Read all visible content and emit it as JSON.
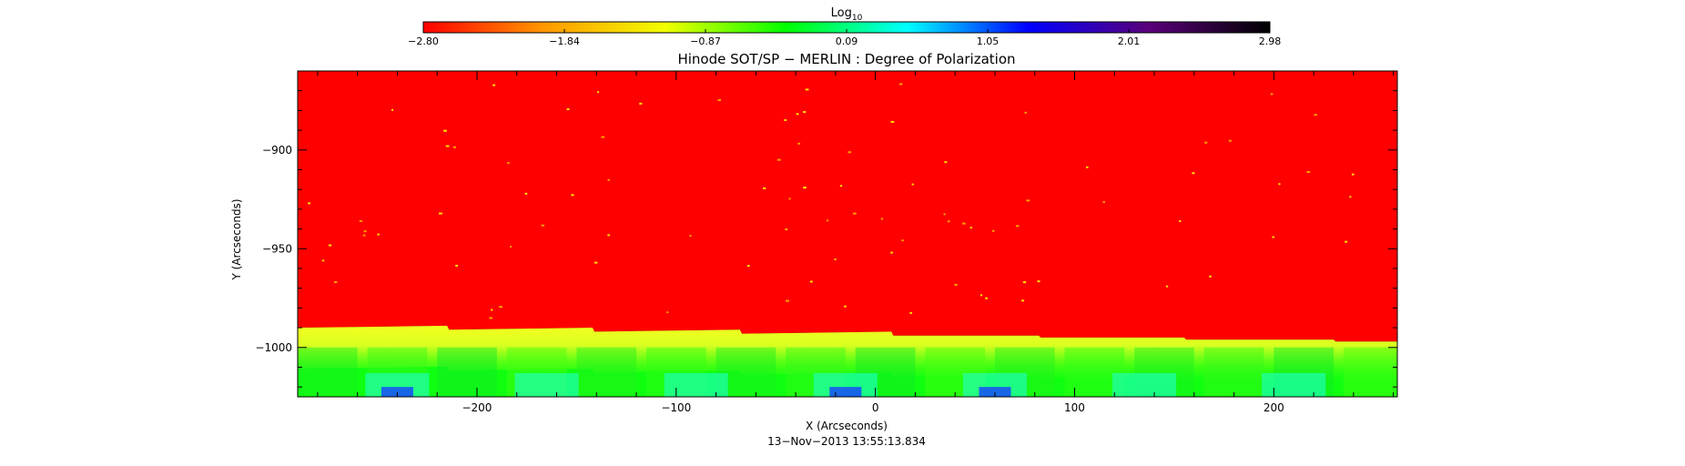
{
  "chart_data": {
    "type": "heatmap",
    "title": "Hinode SOT/SP − MERLIN : Degree of Polarization",
    "xlabel": "X (Arcseconds)",
    "ylabel": "Y (Arcseconds)",
    "xlim": [
      -290,
      262
    ],
    "ylim": [
      -1025,
      -860
    ],
    "xticks": [
      -200,
      -100,
      0,
      100,
      200
    ],
    "xtick_labels": [
      "−200",
      "−100",
      "0",
      "100",
      "200"
    ],
    "yticks": [
      -900,
      -950,
      -1000
    ],
    "ytick_labels": [
      "−900",
      "−950",
      "−1000"
    ],
    "timestamp": "13−Nov−2013 13:55:13.834",
    "colorbar": {
      "label_main": "Log",
      "label_sub": "10",
      "min": -2.8,
      "max": 2.98,
      "tick_labels": [
        "−2.80",
        "−1.84",
        "−0.87",
        "0.09",
        "1.05",
        "2.01",
        "2.98"
      ],
      "colors": [
        "#ff0000",
        "#ff9800",
        "#f2ff00",
        "#00ff00",
        "#00ffff",
        "#0000ff",
        "#5a007a",
        "#000000"
      ]
    },
    "regions": [
      {
        "name": "upper region",
        "value": -2.8,
        "color": "#ff0000"
      },
      {
        "name": "limb band",
        "value": -1.2,
        "color": "#d8ff20"
      },
      {
        "name": "lower region",
        "value": -0.3,
        "color": "#10ff10"
      },
      {
        "name": "bottom patches",
        "value": 0.9,
        "color": "#20ffe0"
      }
    ],
    "limb_boundary": [
      {
        "x": -290,
        "y": -990
      },
      {
        "x": -215,
        "y": -989
      },
      {
        "x": -214,
        "y": -991
      },
      {
        "x": -142,
        "y": -990
      },
      {
        "x": -141,
        "y": -992
      },
      {
        "x": -68,
        "y": -991
      },
      {
        "x": -67,
        "y": -993
      },
      {
        "x": 8,
        "y": -992
      },
      {
        "x": 9,
        "y": -994
      },
      {
        "x": 82,
        "y": -994
      },
      {
        "x": 83,
        "y": -995
      },
      {
        "x": 155,
        "y": -995
      },
      {
        "x": 156,
        "y": -996
      },
      {
        "x": 230,
        "y": -996
      },
      {
        "x": 231,
        "y": -997
      },
      {
        "x": 262,
        "y": -997
      }
    ]
  }
}
